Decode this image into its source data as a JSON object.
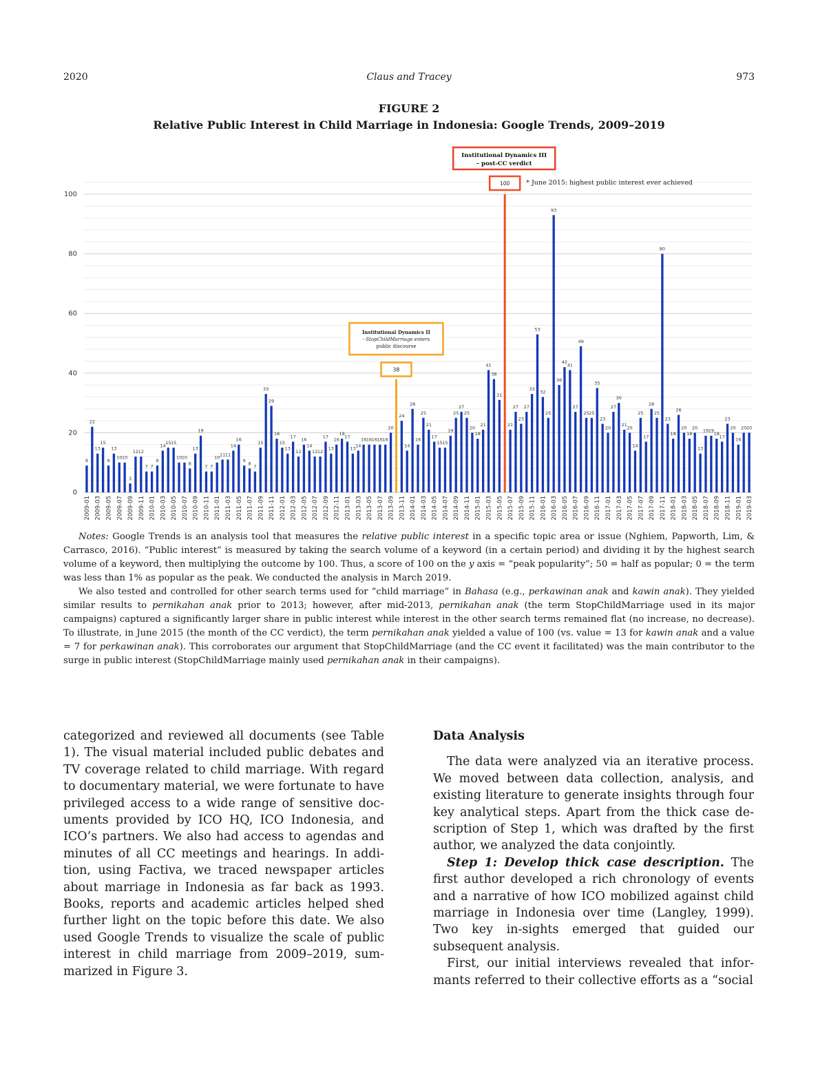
{
  "header": {
    "year": "2020",
    "authors": "Claus and Tracey",
    "page_number": "973"
  },
  "figure": {
    "label": "FIGURE 2",
    "title": "Relative Public Interest in Child Marriage in Indonesia: Google Trends, 2009–2019"
  },
  "chart_data": {
    "type": "bar",
    "title": "",
    "xlabel": "",
    "ylabel": "",
    "ylim": [
      0,
      100
    ],
    "yticks": [
      0,
      20,
      40,
      60,
      80,
      100
    ],
    "grid": true,
    "categories": [
      "2009-01",
      "2009-02",
      "2009-03",
      "2009-04",
      "2009-05",
      "2009-06",
      "2009-07",
      "2009-08",
      "2009-09",
      "2009-10",
      "2009-11",
      "2009-12",
      "2010-01",
      "2010-02",
      "2010-03",
      "2010-04",
      "2010-05",
      "2010-06",
      "2010-07",
      "2010-08",
      "2010-09",
      "2010-10",
      "2010-11",
      "2010-12",
      "2011-01",
      "2011-02",
      "2011-03",
      "2011-04",
      "2011-05",
      "2011-06",
      "2011-07",
      "2011-08",
      "2011-09",
      "2011-10",
      "2011-11",
      "2011-12",
      "2012-01",
      "2012-02",
      "2012-03",
      "2012-04",
      "2012-05",
      "2012-06",
      "2012-07",
      "2012-08",
      "2012-09",
      "2012-10",
      "2012-11",
      "2012-12",
      "2013-01",
      "2013-02",
      "2013-03",
      "2013-04",
      "2013-05",
      "2013-06",
      "2013-07",
      "2013-08",
      "2013-09",
      "2013-10",
      "2013-11",
      "2013-12",
      "2014-01",
      "2014-02",
      "2014-03",
      "2014-04",
      "2014-05",
      "2014-06",
      "2014-07",
      "2014-08",
      "2014-09",
      "2014-10",
      "2014-11",
      "2014-12",
      "2015-01",
      "2015-02",
      "2015-03",
      "2015-04",
      "2015-05",
      "2015-06",
      "2015-07",
      "2015-08",
      "2015-09",
      "2015-10",
      "2015-11",
      "2015-12",
      "2016-01",
      "2016-02",
      "2016-03",
      "2016-04",
      "2016-05",
      "2016-06",
      "2016-07",
      "2016-08",
      "2016-09",
      "2016-10",
      "2016-11",
      "2016-12",
      "2017-01",
      "2017-02",
      "2017-03",
      "2017-04",
      "2017-05",
      "2017-06",
      "2017-07",
      "2017-08",
      "2017-09",
      "2017-10",
      "2017-11",
      "2017-12",
      "2018-01",
      "2018-02",
      "2018-03",
      "2018-04",
      "2018-05",
      "2018-06",
      "2018-07",
      "2018-08",
      "2018-09",
      "2018-10",
      "2018-11",
      "2018-12",
      "2019-01",
      "2019-02",
      "2019-03"
    ],
    "values": [
      9,
      22,
      13,
      15,
      9,
      13,
      10,
      10,
      3,
      12,
      12,
      7,
      7,
      9,
      14,
      15,
      15,
      10,
      10,
      8,
      13,
      19,
      7,
      7,
      10,
      11,
      11,
      14,
      16,
      9,
      8,
      7,
      15,
      33,
      29,
      18,
      15,
      13,
      17,
      12,
      16,
      14,
      12,
      12,
      17,
      13,
      16,
      18,
      17,
      13,
      14,
      16,
      16,
      16,
      16,
      16,
      20,
      38,
      24,
      14,
      28,
      16,
      25,
      21,
      17,
      15,
      15,
      19,
      25,
      27,
      25,
      20,
      18,
      21,
      41,
      38,
      31,
      100,
      21,
      27,
      23,
      27,
      33,
      53,
      32,
      25,
      93,
      36,
      42,
      41,
      27,
      49,
      25,
      25,
      35,
      23,
      20,
      27,
      30,
      21,
      20,
      14,
      25,
      17,
      28,
      25,
      80,
      23,
      18,
      26,
      20,
      18,
      20,
      13,
      19,
      19,
      18,
      17,
      23,
      20,
      16,
      20,
      20
    ],
    "highlights": [
      {
        "category": "2013-10",
        "color": "#f5a623",
        "label": "38"
      },
      {
        "category": "2015-06",
        "color": "#f04e23",
        "label": "100"
      }
    ],
    "annotations": [
      {
        "text_lines": [
          "Institutional Dynamics III",
          "– post-CC verdict"
        ],
        "color": "#e8452c"
      },
      {
        "text_lines": [
          "Institutional Dynamics II",
          "- StopChildMarriage enters",
          "public discourse"
        ],
        "color": "#f5a623"
      },
      {
        "text": "* June 2015: highest public interest ever achieved"
      }
    ],
    "colors": {
      "bar": "#1539b5",
      "grid": "#d9d9d9",
      "axis": "#bfbfbf"
    }
  },
  "notes": {
    "p1": "<i>Notes:</i> Google Trends is an analysis tool that measures the <i>relative public interest</i> in a specific topic area or issue (Nghiem, Papworth, Lim, &amp; Carrasco, 2016). “Public interest” is measured by taking the search volume of a keyword (in a certain period) and dividing it by the highest search volume of a keyword, then multiplying the outcome by 100. Thus, a score of 100 on the <i>y</i> axis = “peak popularity”; 50 = half as popular; 0 = the term was less than 1% as popular as the peak. We conducted the analysis in March 2019.",
    "p2": "We also tested and controlled for other search terms used for “child marriage” in <i>Bahasa</i> (e.g., <i>perkawinan anak</i> and <i>kawin anak</i>). They yielded similar results to <i>pernikahan anak</i> prior to 2013; however, after mid-2013, <i>pernikahan anak</i> (the term StopChildMarriage used in its major campaigns) captured a significantly larger share in public interest while interest in the other search terms remained flat (no increase, no decrease). To illustrate, in June 2015 (the month of the CC verdict), the term <i>pernikahan anak</i> yielded a value of 100 (vs. value = 13 for <i>kawin anak</i> and a value = 7 for <i>perkawinan anak</i>). This corroborates our argument that StopChildMarriage (and the CC event it facilitated) was the main contributor to the surge in public interest (StopChildMarriage mainly used <i>pernikahan anak</i> in their campaigns)."
  },
  "left_column": {
    "p1": "categorized and reviewed all documents (see Table 1). The visual material included public debates and TV coverage related to child marriage. With regard to documentary material, we were fortunate to have privileged access to a wide range of sensitive doc-uments provided by ICO HQ, ICO Indonesia, and ICO’s partners. We also had access to agendas and minutes of all CC meetings and hearings. In addi-tion, using Factiva, we traced newspaper articles about marriage in Indonesia as far back as 1993. Books, reports and academic articles helped shed further light on the topic before this date. We also used Google Trends to visualize the scale of public interest in child marriage from 2009–2019, sum-marized in Figure 3."
  },
  "right_column": {
    "heading": "Data Analysis",
    "p1": "The data were analyzed via an iterative process. We moved between data collection, analysis, and existing literature to generate insights through four key analytical steps. Apart from the thick case de-scription of Step 1, which was drafted by the first author, we analyzed the data conjointly.",
    "step1_heading": "Step 1: Develop thick case description.",
    "p2": "The first author developed a rich chronology of events and a narrative of how ICO mobilized against child marriage in Indonesia over time (Langley, 1999). Two key in-sights emerged that guided our subsequent analysis.",
    "p3": "First, our initial interviews revealed that infor-mants referred to their collective efforts as a “social"
  }
}
